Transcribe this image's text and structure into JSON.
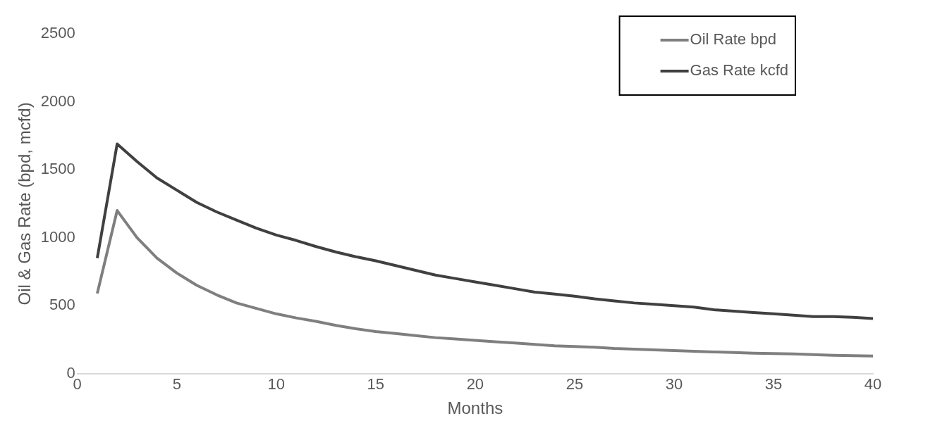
{
  "chart_data": {
    "type": "line",
    "xlabel": "Months",
    "ylabel": "Oil & Gas Rate (bpd, mcfd)",
    "x": [
      1,
      2,
      3,
      4,
      5,
      6,
      7,
      8,
      9,
      10,
      11,
      12,
      13,
      14,
      15,
      16,
      17,
      18,
      19,
      20,
      21,
      22,
      23,
      24,
      25,
      26,
      27,
      28,
      29,
      30,
      31,
      32,
      33,
      34,
      35,
      36,
      37,
      38,
      39,
      40
    ],
    "series": [
      {
        "name": "Oil Rate bpd",
        "color": "#7f7f7f",
        "values": [
          590,
          1200,
          1000,
          850,
          740,
          650,
          580,
          520,
          480,
          440,
          410,
          385,
          355,
          330,
          310,
          295,
          280,
          265,
          255,
          245,
          235,
          225,
          215,
          205,
          200,
          195,
          185,
          180,
          175,
          170,
          165,
          160,
          155,
          150,
          148,
          145,
          140,
          135,
          132,
          130
        ]
      },
      {
        "name": "Gas Rate kcfd",
        "color": "#404040",
        "values": [
          850,
          1690,
          1560,
          1440,
          1350,
          1260,
          1190,
          1130,
          1070,
          1020,
          980,
          935,
          895,
          860,
          830,
          795,
          760,
          725,
          700,
          675,
          650,
          625,
          600,
          585,
          570,
          550,
          535,
          520,
          510,
          500,
          490,
          470,
          460,
          450,
          440,
          430,
          420,
          420,
          415,
          405
        ]
      }
    ],
    "xlim": [
      0,
      40
    ],
    "xticks": [
      0,
      5,
      10,
      15,
      20,
      25,
      30,
      35,
      40
    ],
    "ylim": [
      0,
      2500
    ],
    "yticks": [
      0,
      500,
      1000,
      1500,
      2000,
      2500
    ],
    "grid": false,
    "legend": "top right",
    "marker": "none",
    "line_style": "solid"
  }
}
